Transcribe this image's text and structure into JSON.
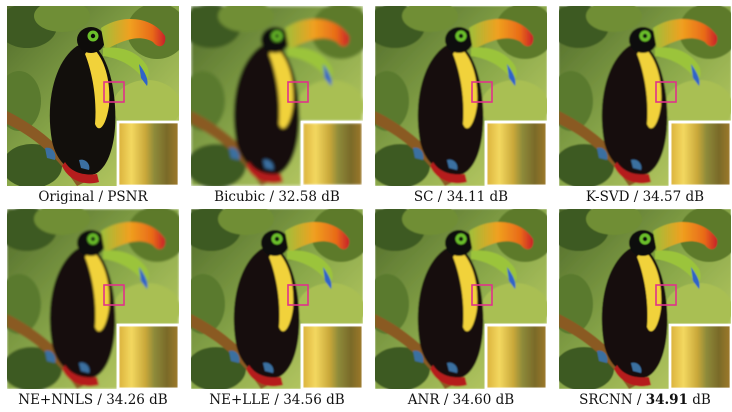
{
  "panels": [
    {
      "method": "Original",
      "psnr": "PSNR",
      "bold": false
    },
    {
      "method": "Bicubic",
      "psnr": "32.58 dB",
      "bold": false
    },
    {
      "method": "SC",
      "psnr": "34.11 dB",
      "bold": false
    },
    {
      "method": "K-SVD",
      "psnr": "34.57 dB",
      "bold": false
    },
    {
      "method": "NE+NNLS",
      "psnr": "34.26 dB",
      "bold": false
    },
    {
      "method": "NE+LLE",
      "psnr": "34.56 dB",
      "bold": false
    },
    {
      "method": "ANR",
      "psnr": "34.60 dB",
      "bold": false
    },
    {
      "method": "SRCNN",
      "psnr_value": "34.91",
      "psnr_unit": "dB",
      "bold": true
    }
  ],
  "colors": {
    "highlight_box": "#e0338a",
    "inset_border": "#ffffff"
  }
}
